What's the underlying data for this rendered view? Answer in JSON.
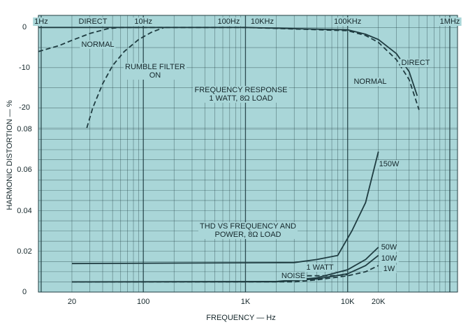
{
  "chart_data": [
    {
      "type": "line",
      "title": "FREQUENCY RESPONSE\n1 WATT, 8Ω LOAD",
      "xscale": "log",
      "xlim": [
        0.94,
        1190000
      ],
      "xbreak": [
        100,
        10000
      ],
      "ylim": [
        -25.5,
        3
      ],
      "yticks": [
        0,
        -10,
        -20
      ],
      "ygrid": [
        0,
        -5,
        -10,
        -15,
        -20,
        -25
      ],
      "xticks": [
        {
          "value": 1,
          "label": "1Hz"
        },
        {
          "value": 10,
          "label": "10Hz"
        },
        {
          "value": 100,
          "label": "100Hz"
        },
        {
          "value": 10000,
          "label": "10KHz"
        },
        {
          "value": 100000,
          "label": "100KHz"
        },
        {
          "value": 1000000,
          "label": "1MHz"
        }
      ],
      "series": [
        {
          "name": "DIRECT",
          "color": "#1f3c41",
          "dashed": false,
          "x": [
            0.94,
            100,
            10000,
            100000,
            150000,
            200000,
            300000,
            400000,
            480000
          ],
          "values": [
            0,
            0,
            0,
            -0.6,
            -1.7,
            -3,
            -6.5,
            -11,
            -17
          ]
        },
        {
          "name": "NORMAL",
          "color": "#1f3c41",
          "dashed": true,
          "x": [
            0.94,
            1.5,
            2,
            3,
            4.5,
            6,
            100,
            10000,
            100000,
            150000,
            200000,
            300000,
            400000,
            500000
          ],
          "values": [
            -6,
            -4.5,
            -3.2,
            -1.5,
            -0.3,
            0,
            0,
            0,
            -0.8,
            -2,
            -3.7,
            -8,
            -13,
            -20.5
          ]
        },
        {
          "name": "RUMBLE FILTER\nON",
          "color": "#1f3c41",
          "dashed": true,
          "x": [
            2.8,
            3.2,
            4,
            5,
            6.5,
            9,
            12,
            16
          ],
          "values": [
            -25,
            -20,
            -14,
            -9.5,
            -6,
            -3,
            -1.2,
            0
          ]
        }
      ],
      "annotations": [
        "DIRECT",
        "NORMAL"
      ]
    },
    {
      "type": "line",
      "title": "THD VS FREQUENCY AND\nPOWER, 8Ω LOAD",
      "xlabel": "FREQUENCY — Hz",
      "ylabel": "HARMONIC DISTORTION — %",
      "xscale": "log",
      "xlim": [
        9.4,
        119000
      ],
      "ylim": [
        0,
        0.08
      ],
      "yticks": [
        0,
        0.02,
        0.04,
        0.06,
        0.08
      ],
      "ygrid": [
        0,
        0.005,
        0.01,
        0.015,
        0.02,
        0.025,
        0.03,
        0.035,
        0.04,
        0.045,
        0.05,
        0.055,
        0.06,
        0.065,
        0.07,
        0.075,
        0.08
      ],
      "xticks": [
        20,
        100,
        {
          "value": 1000,
          "label": "1K"
        },
        {
          "value": 10000,
          "label": "10K"
        },
        {
          "value": 20000,
          "label": "20K"
        }
      ],
      "xgrid": [
        10,
        20,
        30,
        40,
        50,
        60,
        70,
        80,
        90,
        100,
        200,
        300,
        400,
        500,
        600,
        700,
        800,
        900,
        1000,
        2000,
        3000,
        4000,
        5000,
        6000,
        7000,
        8000,
        9000,
        10000,
        20000,
        30000,
        40000,
        50000,
        60000,
        70000,
        80000,
        90000,
        100000
      ],
      "series": [
        {
          "name": "150W",
          "color": "#1f3c41",
          "dashed": false,
          "x": [
            20,
            3000,
            5000,
            8000,
            11000,
            15000,
            20000
          ],
          "values": [
            0.014,
            0.0145,
            0.016,
            0.018,
            0.03,
            0.044,
            0.069
          ]
        },
        {
          "name": "50W",
          "color": "#1f3c41",
          "dashed": false,
          "x": [
            20,
            2000,
            5000,
            10000,
            15000,
            20000
          ],
          "values": [
            0.005,
            0.0052,
            0.007,
            0.011,
            0.016,
            0.022
          ]
        },
        {
          "name": "10W",
          "color": "#1f3c41",
          "dashed": false,
          "x": [
            20,
            2000,
            5000,
            10000,
            15000,
            20000
          ],
          "values": [
            0.005,
            0.005,
            0.0065,
            0.009,
            0.013,
            0.018
          ]
        },
        {
          "name": "1W",
          "color": "#1f3c41",
          "dashed": true,
          "x": [
            20,
            3000,
            5000,
            10000,
            15000,
            20000
          ],
          "values": [
            0.005,
            0.005,
            0.006,
            0.008,
            0.01,
            0.013
          ]
        },
        {
          "name": "NOISE",
          "color": "#1f3c41",
          "dashed": true,
          "x": [
            4000,
            7000,
            10000
          ],
          "values": [
            0.008,
            0.008,
            0.0085
          ]
        }
      ],
      "annotations": [
        "1 WATT"
      ]
    }
  ]
}
